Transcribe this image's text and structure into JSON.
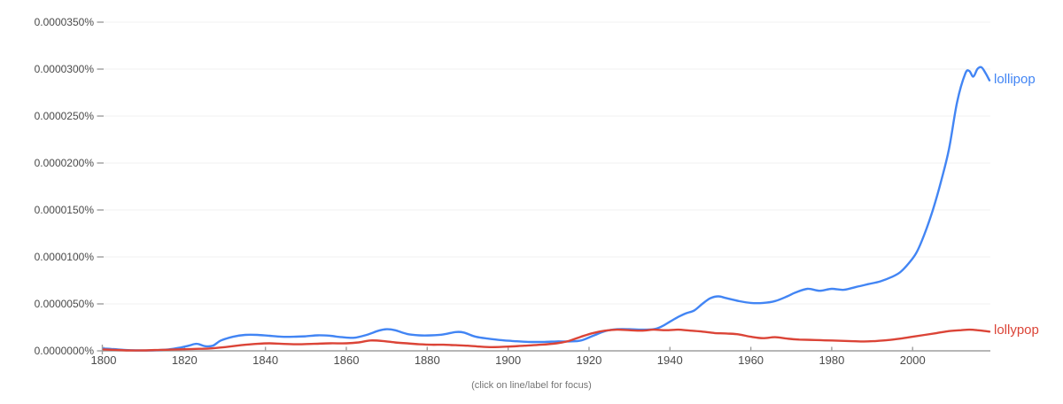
{
  "chart_data": {
    "type": "line",
    "title": "",
    "xlabel": "",
    "ylabel": "",
    "grid": true,
    "legend_position": "line-end",
    "footer_hint": "(click on line/label for focus)",
    "x_range": [
      1800,
      2019
    ],
    "ylim": [
      0,
      3.5e-05
    ],
    "x_ticks": [
      1800,
      1820,
      1840,
      1860,
      1880,
      1900,
      1920,
      1940,
      1960,
      1980,
      2000
    ],
    "y_ticks": [
      {
        "value": 0,
        "label": "0.0000000%"
      },
      {
        "value": 5e-06,
        "label": "0.0000050%"
      },
      {
        "value": 1e-05,
        "label": "0.0000100%"
      },
      {
        "value": 1.5e-05,
        "label": "0.0000150%"
      },
      {
        "value": 2e-05,
        "label": "0.0000200%"
      },
      {
        "value": 2.5e-05,
        "label": "0.0000250%"
      },
      {
        "value": 3e-05,
        "label": "0.0000300%"
      },
      {
        "value": 3.5e-05,
        "label": "0.0000350%"
      }
    ],
    "colors": {
      "axis": "#9e9e9e",
      "grid": "#f2f2f2",
      "tick_label": "#4a4a4a",
      "footer": "#757575"
    },
    "series": [
      {
        "name": "lollipop",
        "color": "#4285f4",
        "points": [
          [
            1800,
            2.5e-07
          ],
          [
            1802,
            2e-07
          ],
          [
            1805,
            1e-07
          ],
          [
            1808,
            5e-08
          ],
          [
            1812,
            5e-08
          ],
          [
            1816,
            1.5e-07
          ],
          [
            1819,
            3.5e-07
          ],
          [
            1821,
            5.5e-07
          ],
          [
            1823,
            7.5e-07
          ],
          [
            1825,
            5e-07
          ],
          [
            1827,
            5.5e-07
          ],
          [
            1829,
            1.1e-06
          ],
          [
            1832,
            1.5e-06
          ],
          [
            1835,
            1.7e-06
          ],
          [
            1838,
            1.7e-06
          ],
          [
            1841,
            1.6e-06
          ],
          [
            1844,
            1.5e-06
          ],
          [
            1847,
            1.5e-06
          ],
          [
            1850,
            1.55e-06
          ],
          [
            1853,
            1.65e-06
          ],
          [
            1856,
            1.6e-06
          ],
          [
            1859,
            1.45e-06
          ],
          [
            1862,
            1.4e-06
          ],
          [
            1865,
            1.7e-06
          ],
          [
            1868,
            2.15e-06
          ],
          [
            1870,
            2.3e-06
          ],
          [
            1872,
            2.2e-06
          ],
          [
            1875,
            1.8e-06
          ],
          [
            1878,
            1.65e-06
          ],
          [
            1881,
            1.65e-06
          ],
          [
            1884,
            1.75e-06
          ],
          [
            1887,
            2e-06
          ],
          [
            1889,
            1.95e-06
          ],
          [
            1892,
            1.5e-06
          ],
          [
            1895,
            1.3e-06
          ],
          [
            1898,
            1.15e-06
          ],
          [
            1901,
            1.05e-06
          ],
          [
            1905,
            9.5e-07
          ],
          [
            1909,
            9.5e-07
          ],
          [
            1912,
            1e-06
          ],
          [
            1915,
            1e-06
          ],
          [
            1918,
            1.1e-06
          ],
          [
            1921,
            1.6e-06
          ],
          [
            1924,
            2.1e-06
          ],
          [
            1927,
            2.3e-06
          ],
          [
            1930,
            2.3e-06
          ],
          [
            1933,
            2.25e-06
          ],
          [
            1936,
            2.3e-06
          ],
          [
            1938,
            2.6e-06
          ],
          [
            1940,
            3.1e-06
          ],
          [
            1942,
            3.6e-06
          ],
          [
            1944,
            4e-06
          ],
          [
            1946,
            4.3e-06
          ],
          [
            1948,
            5e-06
          ],
          [
            1950,
            5.6e-06
          ],
          [
            1952,
            5.8e-06
          ],
          [
            1954,
            5.6e-06
          ],
          [
            1957,
            5.3e-06
          ],
          [
            1960,
            5.1e-06
          ],
          [
            1963,
            5.1e-06
          ],
          [
            1966,
            5.3e-06
          ],
          [
            1969,
            5.8e-06
          ],
          [
            1971,
            6.2e-06
          ],
          [
            1974,
            6.6e-06
          ],
          [
            1977,
            6.4e-06
          ],
          [
            1980,
            6.6e-06
          ],
          [
            1983,
            6.5e-06
          ],
          [
            1986,
            6.8e-06
          ],
          [
            1989,
            7.1e-06
          ],
          [
            1992,
            7.4e-06
          ],
          [
            1995,
            7.9e-06
          ],
          [
            1997,
            8.4e-06
          ],
          [
            1999,
            9.3e-06
          ],
          [
            2001,
            1.05e-05
          ],
          [
            2003,
            1.25e-05
          ],
          [
            2005,
            1.5e-05
          ],
          [
            2007,
            1.8e-05
          ],
          [
            2009,
            2.15e-05
          ],
          [
            2011,
            2.65e-05
          ],
          [
            2013,
            2.95e-05
          ],
          [
            2014,
            2.98e-05
          ],
          [
            2015,
            2.92e-05
          ],
          [
            2016,
            3e-05
          ],
          [
            2017,
            3.02e-05
          ],
          [
            2018,
            2.96e-05
          ],
          [
            2019,
            2.88e-05
          ]
        ]
      },
      {
        "name": "lollypop",
        "color": "#db4437",
        "points": [
          [
            1800,
            1.5e-07
          ],
          [
            1803,
            1e-07
          ],
          [
            1806,
            5e-08
          ],
          [
            1810,
            5e-08
          ],
          [
            1814,
            1e-07
          ],
          [
            1818,
            1.5e-07
          ],
          [
            1822,
            2e-07
          ],
          [
            1826,
            2.5e-07
          ],
          [
            1830,
            4e-07
          ],
          [
            1834,
            6e-07
          ],
          [
            1838,
            7.5e-07
          ],
          [
            1841,
            8e-07
          ],
          [
            1844,
            7.5e-07
          ],
          [
            1848,
            7e-07
          ],
          [
            1852,
            7.5e-07
          ],
          [
            1856,
            8e-07
          ],
          [
            1860,
            8e-07
          ],
          [
            1863,
            9e-07
          ],
          [
            1866,
            1.1e-06
          ],
          [
            1869,
            1.05e-06
          ],
          [
            1872,
            9e-07
          ],
          [
            1875,
            8e-07
          ],
          [
            1878,
            7e-07
          ],
          [
            1881,
            6.5e-07
          ],
          [
            1884,
            6.5e-07
          ],
          [
            1887,
            6e-07
          ],
          [
            1890,
            5.5e-07
          ],
          [
            1893,
            4.5e-07
          ],
          [
            1896,
            4e-07
          ],
          [
            1900,
            4.5e-07
          ],
          [
            1904,
            5.5e-07
          ],
          [
            1908,
            6.5e-07
          ],
          [
            1912,
            8e-07
          ],
          [
            1915,
            1.05e-06
          ],
          [
            1918,
            1.5e-06
          ],
          [
            1921,
            1.9e-06
          ],
          [
            1924,
            2.15e-06
          ],
          [
            1927,
            2.25e-06
          ],
          [
            1930,
            2.2e-06
          ],
          [
            1933,
            2.15e-06
          ],
          [
            1936,
            2.25e-06
          ],
          [
            1939,
            2.2e-06
          ],
          [
            1942,
            2.25e-06
          ],
          [
            1945,
            2.15e-06
          ],
          [
            1948,
            2.05e-06
          ],
          [
            1951,
            1.9e-06
          ],
          [
            1954,
            1.85e-06
          ],
          [
            1957,
            1.75e-06
          ],
          [
            1960,
            1.5e-06
          ],
          [
            1963,
            1.35e-06
          ],
          [
            1966,
            1.45e-06
          ],
          [
            1969,
            1.3e-06
          ],
          [
            1972,
            1.2e-06
          ],
          [
            1976,
            1.15e-06
          ],
          [
            1980,
            1.1e-06
          ],
          [
            1984,
            1.05e-06
          ],
          [
            1988,
            1e-06
          ],
          [
            1991,
            1.05e-06
          ],
          [
            1994,
            1.15e-06
          ],
          [
            1997,
            1.3e-06
          ],
          [
            2000,
            1.5e-06
          ],
          [
            2003,
            1.7e-06
          ],
          [
            2006,
            1.9e-06
          ],
          [
            2009,
            2.1e-06
          ],
          [
            2012,
            2.2e-06
          ],
          [
            2014,
            2.25e-06
          ],
          [
            2016,
            2.2e-06
          ],
          [
            2018,
            2.1e-06
          ],
          [
            2019,
            2.05e-06
          ]
        ]
      }
    ]
  }
}
